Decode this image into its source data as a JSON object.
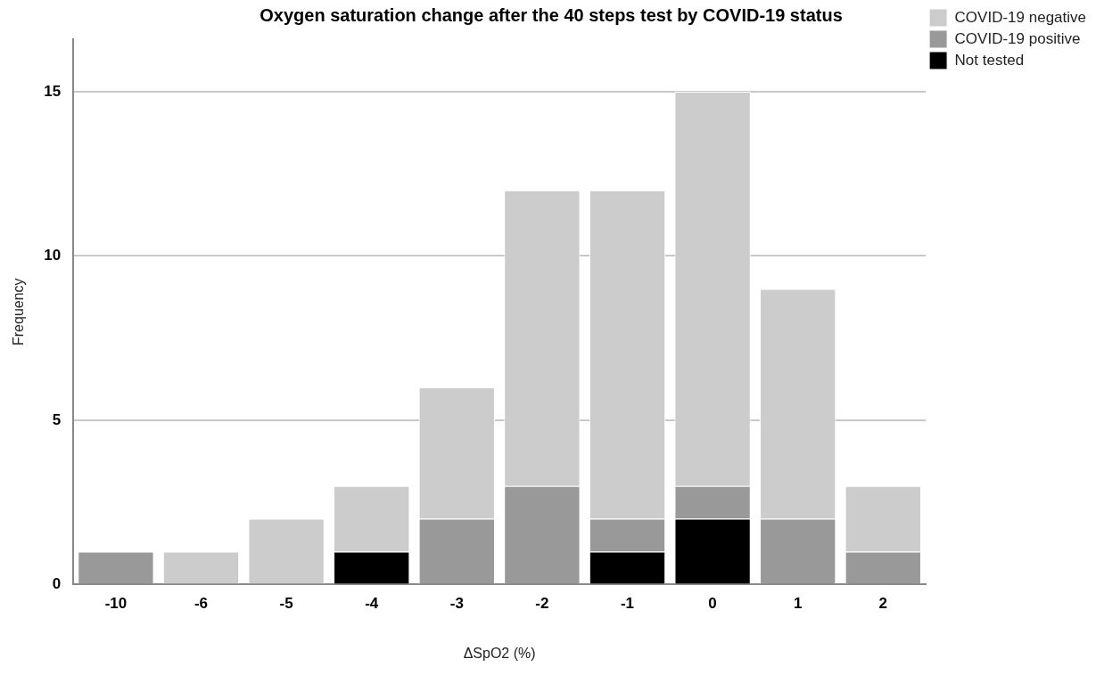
{
  "chart_data": {
    "type": "bar",
    "title": "Oxygen saturation change after the 40 steps test by COVID-19 status",
    "xlabel": "ΔSpO2 (%)",
    "ylabel": "Frequency",
    "categories": [
      "-10",
      "-6",
      "-5",
      "-4",
      "-3",
      "-2",
      "-1",
      "0",
      "1",
      "2"
    ],
    "stacked": true,
    "series": [
      {
        "name": "Not tested",
        "color": "#000000",
        "values": [
          0,
          0,
          0,
          1,
          0,
          0,
          1,
          2,
          0,
          0
        ]
      },
      {
        "name": "COVID-19 positive",
        "color": "#999999",
        "values": [
          1,
          0,
          0,
          0,
          2,
          3,
          1,
          1,
          2,
          1
        ]
      },
      {
        "name": "COVID-19 negative",
        "color": "#cccccc",
        "values": [
          0,
          1,
          2,
          2,
          4,
          9,
          10,
          12,
          7,
          2
        ]
      }
    ],
    "ylim": [
      0,
      16.6
    ],
    "yticks": [
      0,
      5,
      10,
      15
    ],
    "grid": "y",
    "legend": "top right"
  }
}
